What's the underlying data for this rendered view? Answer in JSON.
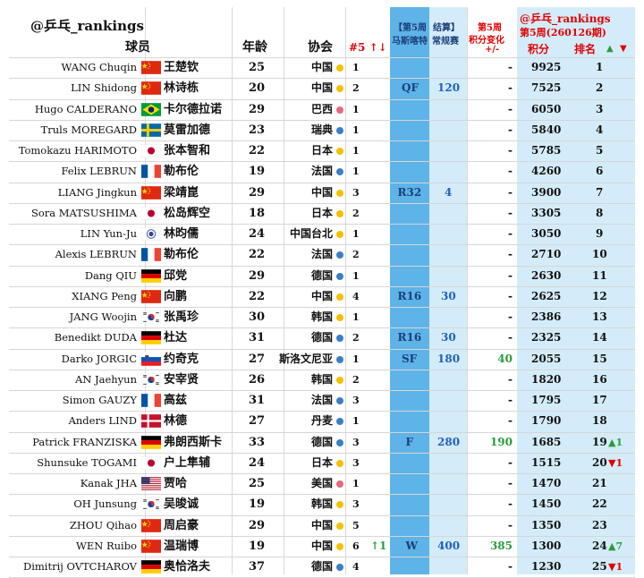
{
  "header": {
    "brand": "@乒乓_rankings",
    "col_player": "球员",
    "col_age": "年龄",
    "col_assoc": "协会",
    "col_trend": "#5 ↑↓",
    "col_event_line1": "【第5周",
    "col_event_name": "马斯喀特",
    "col_result_line1": "结算】",
    "col_result_name": "常规赛",
    "col_change_line1": "第5周",
    "col_change_line2": "积分变化",
    "col_change_line3": "+/-",
    "col_rank_brand": "@乒乓_rankings",
    "col_rank_period": "第5周(260126期)",
    "col_points": "积分",
    "col_rank": "排名",
    "rank_up_arrow": "▲",
    "rank_down_arrow": "▼"
  },
  "colors": {
    "header_red": "#e00000",
    "band_blue": "#5eb3e8",
    "band_light": "#d4ecf9",
    "pos_green": "#2a9d3a",
    "neg_red": "#e00000",
    "dot_yellow": "#f5c000",
    "dot_blue": "#3a7fc8",
    "dot_pink": "#e36a7e"
  },
  "rows": [
    {
      "en": "WANG Chuqin",
      "flag": "china-flag",
      "zh": "王楚钦",
      "age": "25",
      "assoc": "中国",
      "dot": "yellow",
      "cnt": "1",
      "trend": "",
      "ev": "",
      "res": "",
      "chg": "-",
      "pts": "9925",
      "rank": "1",
      "mv": "",
      "mvdir": ""
    },
    {
      "en": "LIN Shidong",
      "flag": "china-flag",
      "zh": "林诗栋",
      "age": "20",
      "assoc": "中国",
      "dot": "yellow",
      "cnt": "2",
      "trend": "",
      "ev": "QF",
      "res": "120",
      "chg": "-",
      "pts": "7525",
      "rank": "2",
      "mv": "",
      "mvdir": ""
    },
    {
      "en": "Hugo CALDERANO",
      "flag": "brazil-flag",
      "zh": "卡尔德拉诺",
      "age": "29",
      "assoc": "巴西",
      "dot": "pink",
      "cnt": "1",
      "trend": "",
      "ev": "",
      "res": "",
      "chg": "-",
      "pts": "6050",
      "rank": "3",
      "mv": "",
      "mvdir": ""
    },
    {
      "en": "Truls MOREGARD",
      "flag": "sweden-flag",
      "zh": "莫雷加德",
      "age": "23",
      "assoc": "瑞典",
      "dot": "blue",
      "cnt": "1",
      "trend": "",
      "ev": "",
      "res": "",
      "chg": "-",
      "pts": "5840",
      "rank": "4",
      "mv": "",
      "mvdir": ""
    },
    {
      "en": "Tomokazu HARIMOTO",
      "flag": "japan-flag",
      "zh": "张本智和",
      "age": "22",
      "assoc": "日本",
      "dot": "yellow",
      "cnt": "1",
      "trend": "",
      "ev": "",
      "res": "",
      "chg": "-",
      "pts": "5785",
      "rank": "5",
      "mv": "",
      "mvdir": ""
    },
    {
      "en": "Felix LEBRUN",
      "flag": "france-flag",
      "zh": "勒布伦",
      "age": "19",
      "assoc": "法国",
      "dot": "blue",
      "cnt": "1",
      "trend": "",
      "ev": "",
      "res": "",
      "chg": "-",
      "pts": "4260",
      "rank": "6",
      "mv": "",
      "mvdir": ""
    },
    {
      "en": "LIANG Jingkun",
      "flag": "china-flag",
      "zh": "梁靖崑",
      "age": "29",
      "assoc": "中国",
      "dot": "yellow",
      "cnt": "3",
      "trend": "",
      "ev": "R32",
      "res": "4",
      "chg": "-",
      "pts": "3900",
      "rank": "7",
      "mv": "",
      "mvdir": ""
    },
    {
      "en": "Sora MATSUSHIMA",
      "flag": "japan-flag",
      "zh": "松岛辉空",
      "age": "18",
      "assoc": "日本",
      "dot": "yellow",
      "cnt": "2",
      "trend": "",
      "ev": "",
      "res": "",
      "chg": "-",
      "pts": "3305",
      "rank": "8",
      "mv": "",
      "mvdir": ""
    },
    {
      "en": "LIN Yun-Ju",
      "flag": "taipei-flag",
      "zh": "林昀儒",
      "age": "24",
      "assoc": "中国台北",
      "dot": "yellow",
      "cnt": "1",
      "trend": "",
      "ev": "",
      "res": "",
      "chg": "-",
      "pts": "3050",
      "rank": "9",
      "mv": "",
      "mvdir": ""
    },
    {
      "en": "Alexis LEBRUN",
      "flag": "france-flag",
      "zh": "勒布伦",
      "age": "22",
      "assoc": "法国",
      "dot": "blue",
      "cnt": "2",
      "trend": "",
      "ev": "",
      "res": "",
      "chg": "-",
      "pts": "2710",
      "rank": "10",
      "mv": "",
      "mvdir": ""
    },
    {
      "en": "Dang QIU",
      "flag": "germany-flag",
      "zh": "邱党",
      "age": "29",
      "assoc": "德国",
      "dot": "blue",
      "cnt": "1",
      "trend": "",
      "ev": "",
      "res": "",
      "chg": "-",
      "pts": "2630",
      "rank": "11",
      "mv": "",
      "mvdir": ""
    },
    {
      "en": "XIANG Peng",
      "flag": "china-flag",
      "zh": "向鹏",
      "age": "22",
      "assoc": "中国",
      "dot": "yellow",
      "cnt": "4",
      "trend": "",
      "ev": "R16",
      "res": "30",
      "chg": "-",
      "pts": "2625",
      "rank": "12",
      "mv": "",
      "mvdir": ""
    },
    {
      "en": "JANG Woojin",
      "flag": "korea-flag",
      "zh": "张禹珍",
      "age": "30",
      "assoc": "韩国",
      "dot": "yellow",
      "cnt": "1",
      "trend": "",
      "ev": "",
      "res": "",
      "chg": "-",
      "pts": "2386",
      "rank": "13",
      "mv": "",
      "mvdir": ""
    },
    {
      "en": "Benedikt DUDA",
      "flag": "germany-flag",
      "zh": "杜达",
      "age": "31",
      "assoc": "德国",
      "dot": "blue",
      "cnt": "2",
      "trend": "",
      "ev": "R16",
      "res": "30",
      "chg": "-",
      "pts": "2325",
      "rank": "14",
      "mv": "",
      "mvdir": ""
    },
    {
      "en": "Darko JORGIC",
      "flag": "slovenia-flag",
      "zh": "约奇克",
      "age": "27",
      "assoc": "斯洛文尼亚",
      "dot": "blue",
      "cnt": "1",
      "trend": "",
      "ev": "SF",
      "res": "180",
      "chg": "40",
      "pts": "2055",
      "rank": "15",
      "mv": "",
      "mvdir": ""
    },
    {
      "en": "AN Jaehyun",
      "flag": "korea-flag",
      "zh": "安宰贤",
      "age": "26",
      "assoc": "韩国",
      "dot": "yellow",
      "cnt": "2",
      "trend": "",
      "ev": "",
      "res": "",
      "chg": "-",
      "pts": "1820",
      "rank": "16",
      "mv": "",
      "mvdir": ""
    },
    {
      "en": "Simon GAUZY",
      "flag": "france-flag",
      "zh": "高兹",
      "age": "31",
      "assoc": "法国",
      "dot": "blue",
      "cnt": "3",
      "trend": "",
      "ev": "",
      "res": "",
      "chg": "-",
      "pts": "1795",
      "rank": "17",
      "mv": "",
      "mvdir": ""
    },
    {
      "en": "Anders LIND",
      "flag": "denmark-flag",
      "zh": "林德",
      "age": "27",
      "assoc": "丹麦",
      "dot": "blue",
      "cnt": "1",
      "trend": "",
      "ev": "",
      "res": "",
      "chg": "-",
      "pts": "1790",
      "rank": "18",
      "mv": "",
      "mvdir": ""
    },
    {
      "en": "Patrick FRANZISKA",
      "flag": "germany-flag",
      "zh": "弗朗西斯卡",
      "age": "33",
      "assoc": "德国",
      "dot": "blue",
      "cnt": "3",
      "trend": "",
      "ev": "F",
      "res": "280",
      "chg": "190",
      "pts": "1685",
      "rank": "19",
      "mv": "1",
      "mvdir": "up"
    },
    {
      "en": "Shunsuke TOGAMI",
      "flag": "japan-flag",
      "zh": "户上隼辅",
      "age": "24",
      "assoc": "日本",
      "dot": "yellow",
      "cnt": "3",
      "trend": "",
      "ev": "",
      "res": "",
      "chg": "-",
      "pts": "1515",
      "rank": "20",
      "mv": "1",
      "mvdir": "down"
    },
    {
      "en": "Kanak JHA",
      "flag": "usa-flag",
      "zh": "贾哈",
      "age": "25",
      "assoc": "美国",
      "dot": "pink",
      "cnt": "1",
      "trend": "",
      "ev": "",
      "res": "",
      "chg": "-",
      "pts": "1470",
      "rank": "21",
      "mv": "",
      "mvdir": ""
    },
    {
      "en": "OH Junsung",
      "flag": "korea-flag",
      "zh": "吴晙诚",
      "age": "19",
      "assoc": "韩国",
      "dot": "yellow",
      "cnt": "3",
      "trend": "",
      "ev": "",
      "res": "",
      "chg": "-",
      "pts": "1450",
      "rank": "22",
      "mv": "",
      "mvdir": ""
    },
    {
      "en": "ZHOU Qihao",
      "flag": "china-flag",
      "zh": "周启豪",
      "age": "29",
      "assoc": "中国",
      "dot": "yellow",
      "cnt": "5",
      "trend": "",
      "ev": "",
      "res": "",
      "chg": "-",
      "pts": "1350",
      "rank": "23",
      "mv": "",
      "mvdir": ""
    },
    {
      "en": "WEN Ruibo",
      "flag": "china-flag",
      "zh": "温瑞博",
      "age": "19",
      "assoc": "中国",
      "dot": "yellow",
      "cnt": "6",
      "trend": "↑1",
      "ev": "W",
      "res": "400",
      "chg": "385",
      "pts": "1300",
      "rank": "24",
      "mv": "7",
      "mvdir": "up"
    },
    {
      "en": "Dimitrij OVTCHAROV",
      "flag": "germany-flag",
      "zh": "奥恰洛夫",
      "age": "37",
      "assoc": "德国",
      "dot": "blue",
      "cnt": "4",
      "trend": "",
      "ev": "",
      "res": "",
      "chg": "-",
      "pts": "1230",
      "rank": "25",
      "mv": "1",
      "mvdir": "down"
    }
  ]
}
